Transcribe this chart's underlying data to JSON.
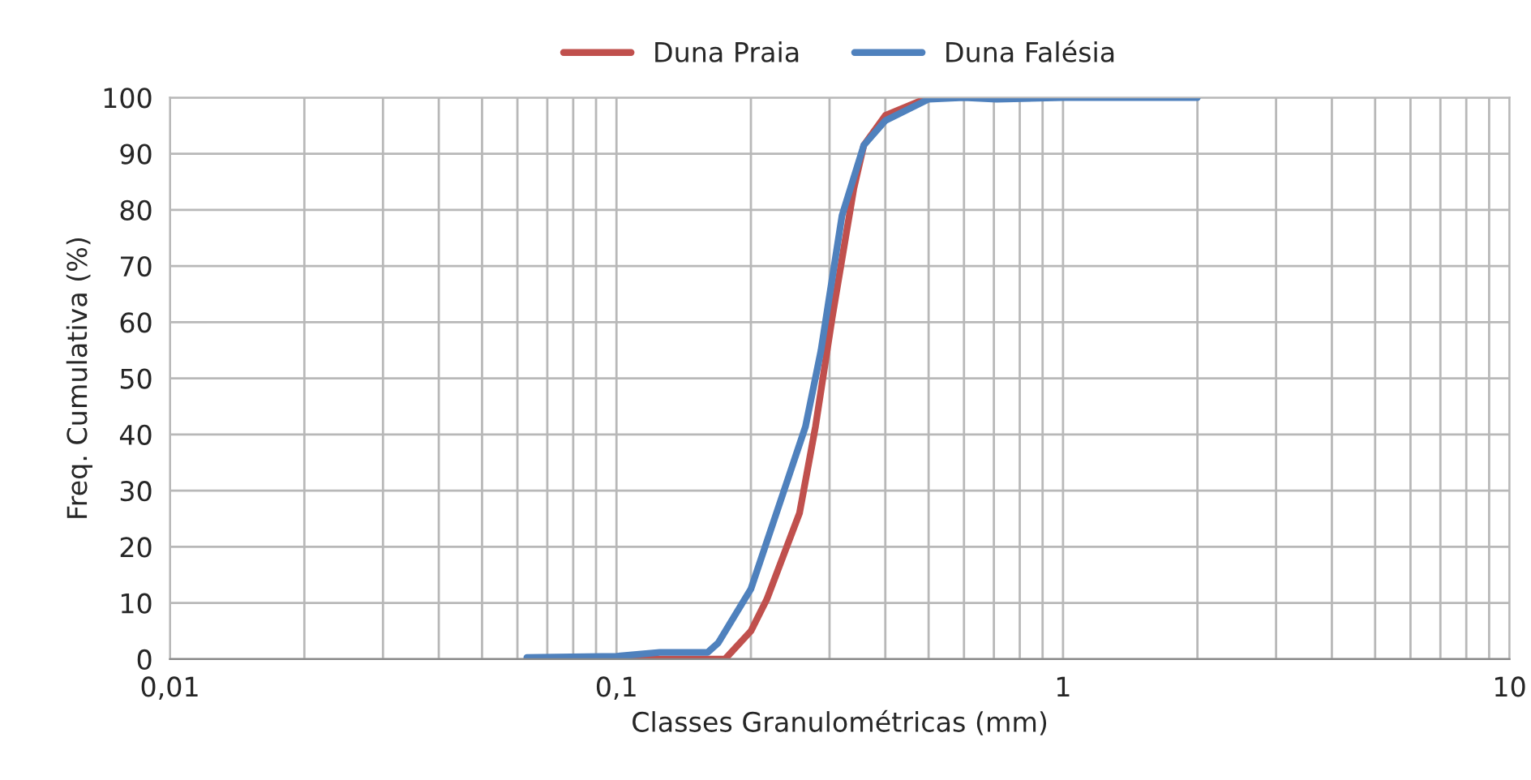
{
  "chart_data": {
    "type": "line",
    "xlabel": "Classes Granulométricas (mm)",
    "ylabel": "Freq. Cumulativa (%)",
    "log": "x",
    "xlim": [
      0.01,
      10
    ],
    "ylim": [
      0,
      100
    ],
    "xticks": [
      {
        "value": 0.01,
        "label": "0,01"
      },
      {
        "value": 0.1,
        "label": "0,1"
      },
      {
        "value": 1,
        "label": "1"
      },
      {
        "value": 10,
        "label": "10"
      }
    ],
    "yticks": [
      0,
      10,
      20,
      30,
      40,
      50,
      60,
      70,
      80,
      90,
      100
    ],
    "grid": true,
    "legend": "top",
    "line_style": "solid",
    "marker": "none",
    "series": [
      {
        "name": "Duna Praia",
        "color": "#c0504d",
        "x": [
          0.063,
          0.1,
          0.125,
          0.16,
          0.175,
          0.2,
          0.217,
          0.257,
          0.279,
          0.304,
          0.34,
          0.358,
          0.4,
          0.5
        ],
        "values": [
          0,
          0,
          0,
          0,
          0,
          5,
          10.6,
          26,
          41.4,
          60.7,
          83.8,
          91.5,
          96.8,
          100
        ]
      },
      {
        "name": "Duna Falésia",
        "color": "#4f81bd",
        "x": [
          0.063,
          0.1,
          0.125,
          0.16,
          0.169,
          0.2,
          0.237,
          0.265,
          0.287,
          0.32,
          0.358,
          0.4,
          0.5,
          0.6,
          0.71,
          1,
          2
        ],
        "values": [
          0.3,
          0.5,
          1.2,
          1.2,
          2.9,
          12.5,
          29.9,
          41.4,
          54.9,
          79,
          91.5,
          95.9,
          99.7,
          100,
          99.7,
          100,
          100
        ]
      }
    ]
  }
}
